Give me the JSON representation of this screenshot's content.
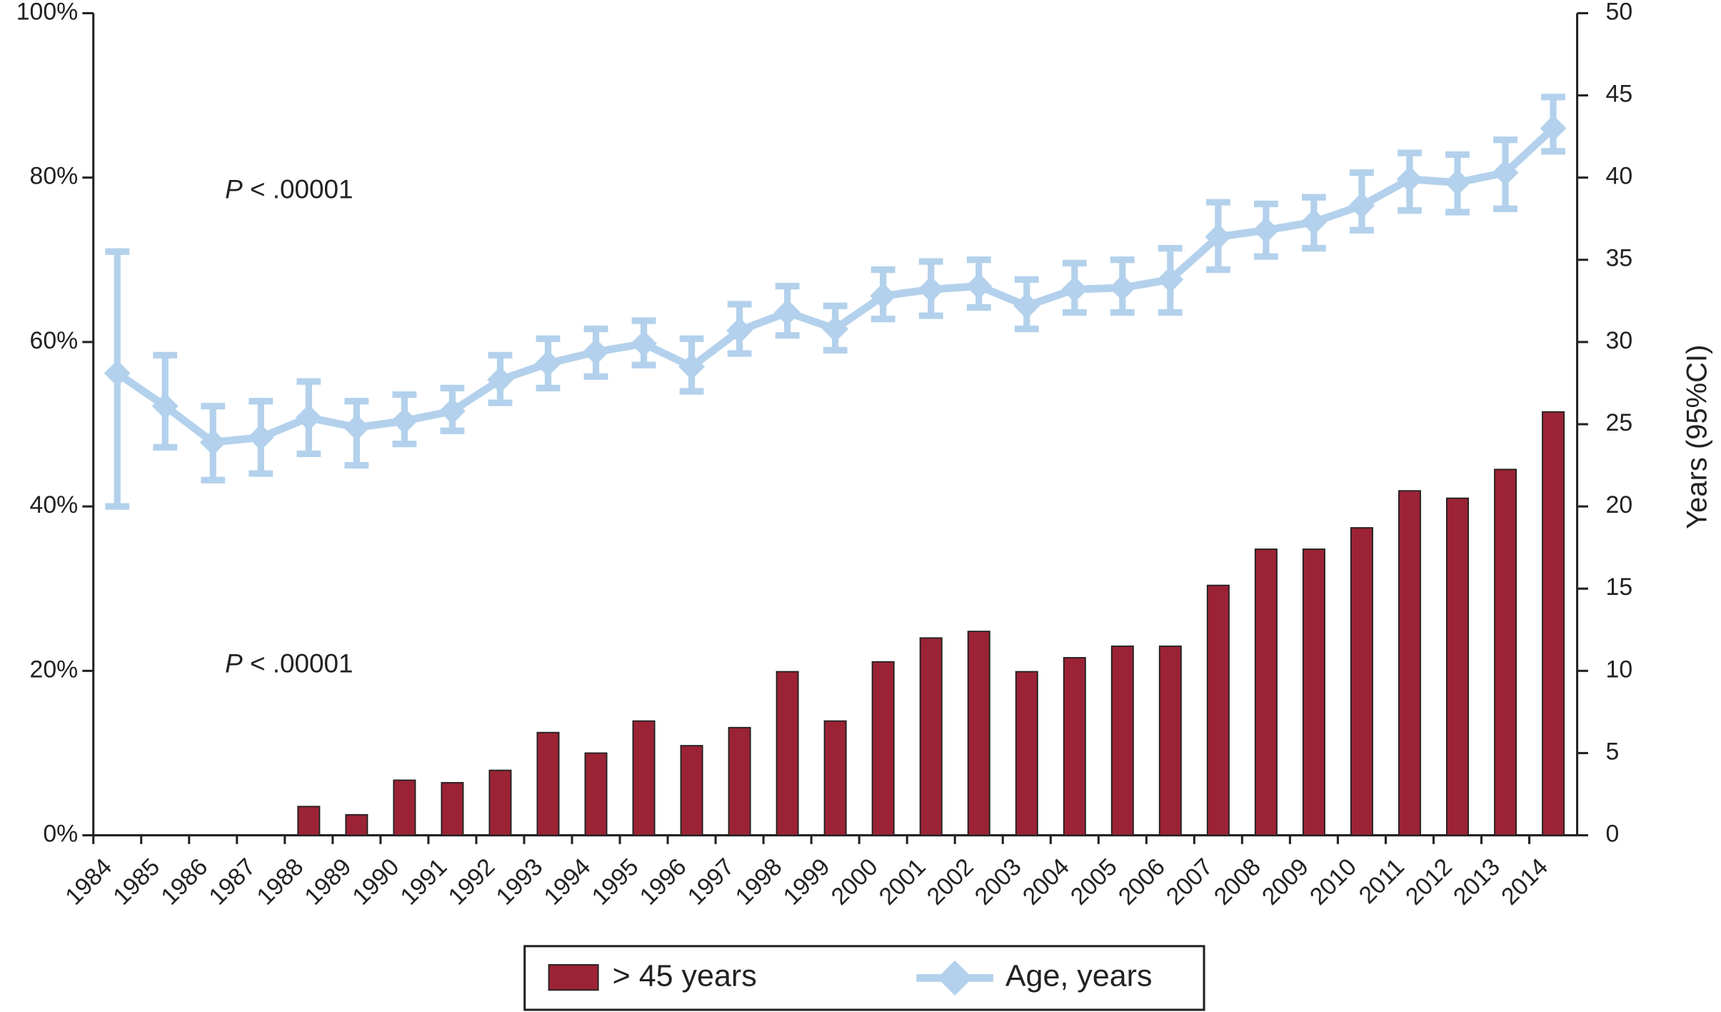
{
  "chart_data": {
    "type": "combo",
    "categories": [
      "1984",
      "1985",
      "1986",
      "1987",
      "1988",
      "1989",
      "1990",
      "1991",
      "1992",
      "1993",
      "1994",
      "1995",
      "1996",
      "1997",
      "1998",
      "1999",
      "2000",
      "2001",
      "2002",
      "2003",
      "2004",
      "2005",
      "2006",
      "2007",
      "2008",
      "2009",
      "2010",
      "2011",
      "2012",
      "2013",
      "2014"
    ],
    "series": [
      {
        "name": "> 45 years",
        "type": "bar",
        "color": "#9b2335",
        "values": [
          0,
          0,
          0,
          0,
          3.5,
          2.5,
          6.7,
          6.4,
          7.9,
          12.5,
          10,
          13.9,
          10.9,
          13.1,
          19.9,
          13.9,
          21.1,
          24,
          24.8,
          19.9,
          21.6,
          23,
          23,
          30.4,
          34.8,
          34.8,
          37.4,
          41.9,
          41,
          44.5,
          51.5
        ]
      },
      {
        "name": "Age, years",
        "type": "line",
        "axis": "y2",
        "color": "#b3d1ec",
        "values": [
          28.1,
          26.1,
          23.9,
          24.2,
          25.4,
          24.8,
          25.2,
          25.8,
          27.7,
          28.7,
          29.4,
          29.9,
          28.5,
          30.7,
          31.8,
          30.8,
          32.8,
          33.2,
          33.4,
          32.2,
          33.2,
          33.3,
          33.8,
          36.4,
          36.8,
          37.3,
          38.3,
          39.9,
          39.7,
          40.3,
          43
        ],
        "ci_lower": [
          20,
          23.6,
          21.6,
          22,
          23.2,
          22.5,
          23.8,
          24.6,
          26.3,
          27.2,
          27.9,
          28.6,
          27,
          29.3,
          30.4,
          29.5,
          31.4,
          31.6,
          32.1,
          30.8,
          31.8,
          31.8,
          31.8,
          34.4,
          35.2,
          35.7,
          36.8,
          38,
          37.9,
          38.1,
          41.6
        ],
        "ci_upper": [
          35.5,
          29.2,
          26.1,
          26.4,
          27.6,
          26.4,
          26.8,
          27.2,
          29.2,
          30.2,
          30.8,
          31.3,
          30.2,
          32.3,
          33.4,
          32.2,
          34.4,
          34.9,
          35,
          33.8,
          34.8,
          35,
          35.7,
          38.5,
          38.4,
          38.8,
          40.3,
          41.5,
          41.4,
          42.3,
          44.9
        ]
      }
    ],
    "ylim": [
      0,
      100
    ],
    "yticks": [
      {
        "value": 0,
        "label": "0%"
      },
      {
        "value": 20,
        "label": "20%"
      },
      {
        "value": 40,
        "label": "40%"
      },
      {
        "value": 60,
        "label": "60%"
      },
      {
        "value": 80,
        "label": "80%"
      },
      {
        "value": 100,
        "label": "100%"
      }
    ],
    "y2lim": [
      0,
      50
    ],
    "y2ticks": [
      0,
      5,
      10,
      15,
      20,
      25,
      30,
      35,
      40,
      45,
      50
    ],
    "y2label": "Years (95%CI)",
    "annotations": [
      "P < .00001",
      "P < .00001"
    ],
    "legend": "bottom"
  }
}
